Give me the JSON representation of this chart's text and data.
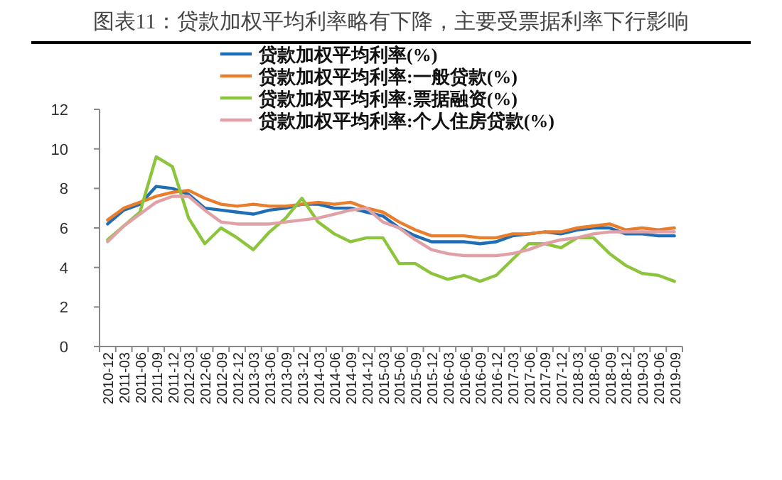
{
  "chart_data": {
    "type": "line",
    "title": "图表11：贷款加权平均利率略有下降，主要受票据利率下行影响",
    "categories": [
      "2010-12",
      "2011-03",
      "2011-06",
      "2011-09",
      "2011-12",
      "2012-03",
      "2012-06",
      "2012-09",
      "2012-12",
      "2013-03",
      "2013-06",
      "2013-09",
      "2013-12",
      "2014-03",
      "2014-06",
      "2014-09",
      "2014-12",
      "2015-03",
      "2015-06",
      "2015-09",
      "2015-12",
      "2016-03",
      "2016-06",
      "2016-09",
      "2016-12",
      "2017-03",
      "2017-06",
      "2017-09",
      "2017-12",
      "2018-03",
      "2018-06",
      "2018-09",
      "2018-12",
      "2019-03",
      "2019-06",
      "2019-09"
    ],
    "series": [
      {
        "name": "贷款加权平均利率(%)",
        "color": "#1f6eb5",
        "values": [
          6.2,
          6.9,
          7.2,
          8.1,
          8.0,
          7.7,
          7.0,
          6.9,
          6.8,
          6.7,
          6.9,
          7.0,
          7.2,
          7.2,
          7.0,
          7.0,
          6.8,
          6.6,
          6.0,
          5.6,
          5.3,
          5.3,
          5.3,
          5.2,
          5.3,
          5.6,
          5.7,
          5.8,
          5.7,
          5.9,
          6.0,
          6.0,
          5.7,
          5.7,
          5.6,
          5.6
        ]
      },
      {
        "name": "贷款加权平均利率:一般贷款(%)",
        "color": "#e87d2c",
        "values": [
          6.4,
          7.0,
          7.3,
          7.6,
          7.8,
          7.9,
          7.5,
          7.2,
          7.1,
          7.2,
          7.1,
          7.1,
          7.2,
          7.3,
          7.2,
          7.3,
          7.0,
          6.8,
          6.3,
          5.9,
          5.6,
          5.6,
          5.6,
          5.5,
          5.5,
          5.7,
          5.7,
          5.8,
          5.8,
          6.0,
          6.1,
          6.2,
          5.9,
          6.0,
          5.9,
          6.0
        ]
      },
      {
        "name": "贷款加权平均利率:票据融资(%)",
        "color": "#8cc43c",
        "values": [
          5.4,
          6.1,
          6.8,
          9.6,
          9.1,
          6.5,
          5.2,
          6.0,
          5.5,
          4.9,
          5.8,
          6.5,
          7.5,
          6.3,
          5.7,
          5.3,
          5.5,
          5.5,
          4.2,
          4.2,
          3.7,
          3.4,
          3.6,
          3.3,
          3.6,
          4.4,
          5.2,
          5.2,
          5.0,
          5.5,
          5.5,
          4.7,
          4.1,
          3.7,
          3.6,
          3.3
        ]
      },
      {
        "name": "贷款加权平均利率:个人住房贷款(%)",
        "color": "#e0a0a6",
        "values": [
          5.3,
          6.1,
          6.7,
          7.3,
          7.6,
          7.6,
          6.9,
          6.3,
          6.2,
          6.2,
          6.2,
          6.3,
          6.4,
          6.5,
          6.7,
          6.9,
          7.0,
          6.3,
          6.0,
          5.4,
          4.9,
          4.7,
          4.6,
          4.6,
          4.6,
          4.7,
          4.9,
          5.2,
          5.4,
          5.5,
          5.7,
          5.8,
          5.8,
          5.8,
          5.8,
          5.8
        ]
      }
    ],
    "ylim": [
      0,
      12
    ],
    "yticks": [
      0,
      2,
      4,
      6,
      8,
      10,
      12
    ],
    "legend": "top"
  }
}
